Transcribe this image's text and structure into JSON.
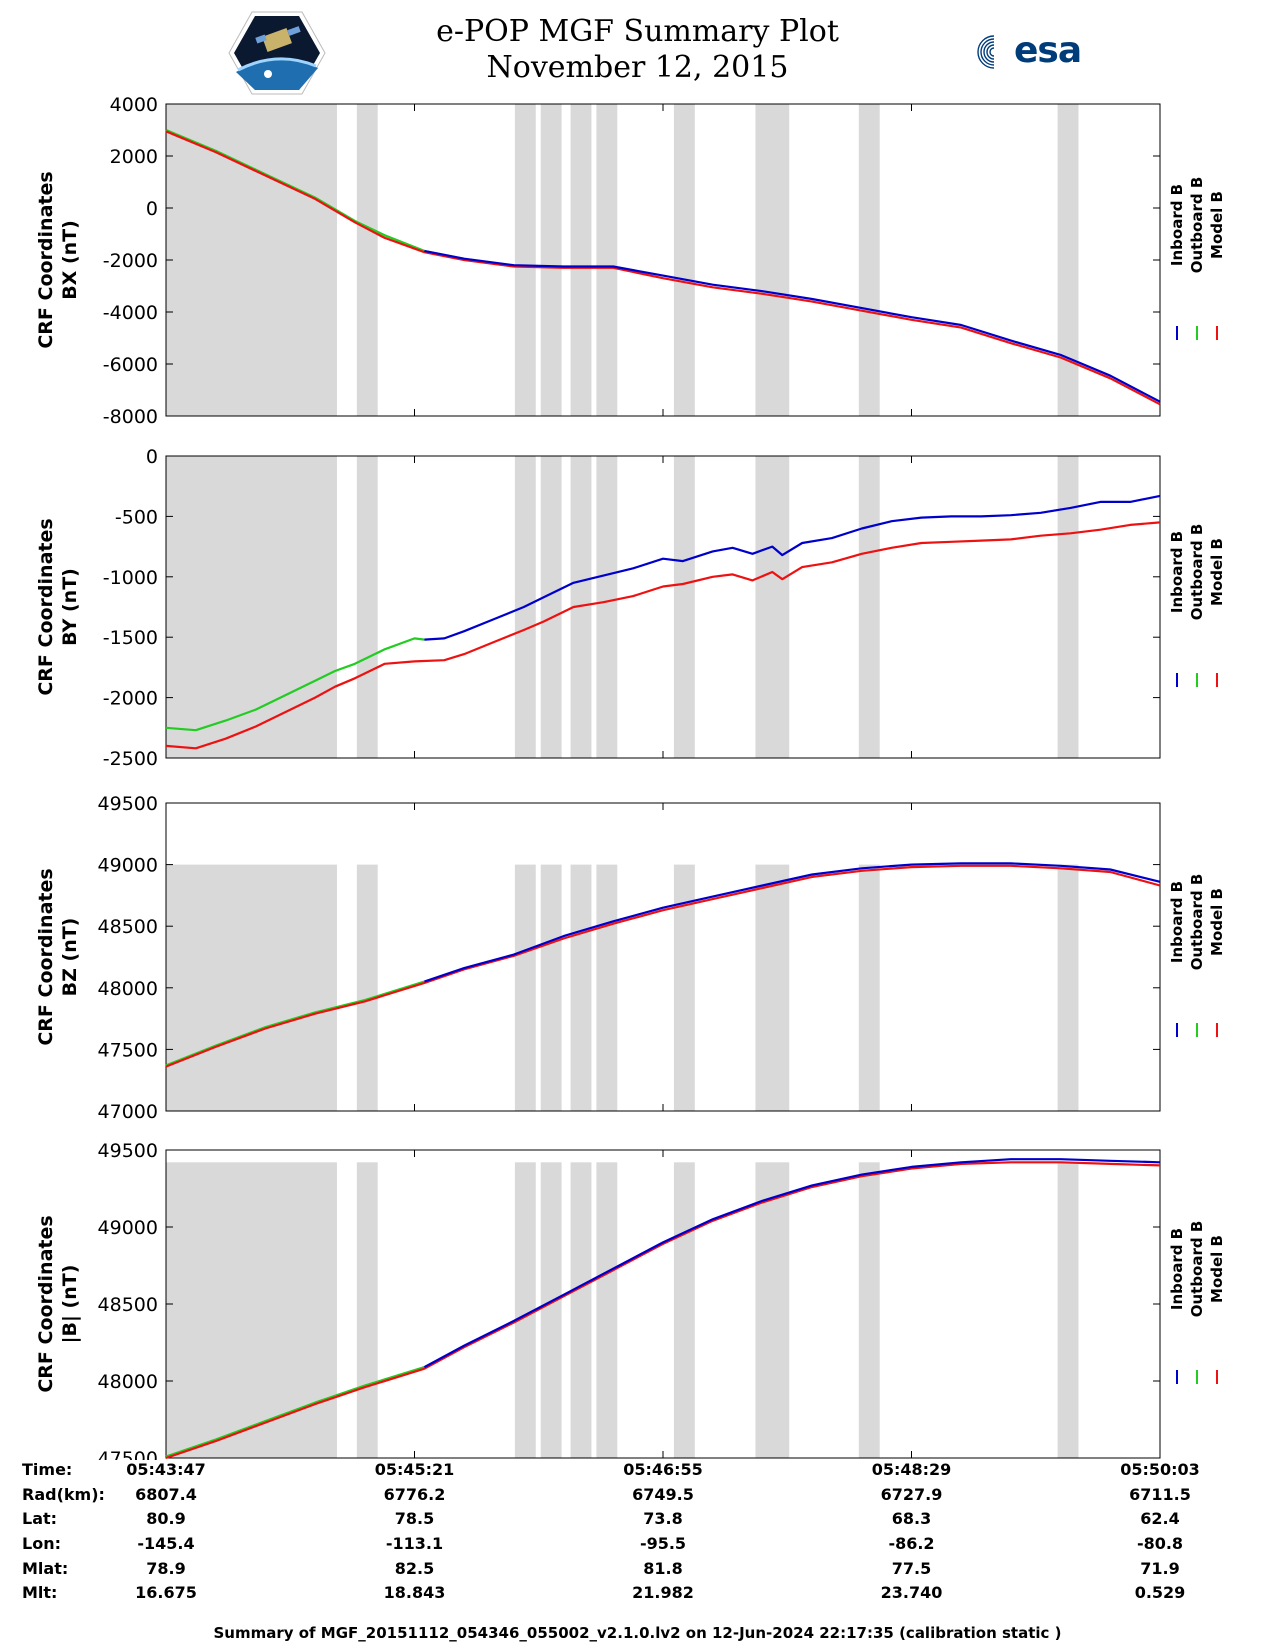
{
  "header": {
    "title": "e-POP MGF Summary Plot",
    "date": "November 12, 2015",
    "logo_left_icon": "cassiope-satellite-logo",
    "logo_right_icon": "esa-logo",
    "esa_text": "esa"
  },
  "legend": {
    "items": [
      {
        "label": "Inboard B",
        "color": "#0000cc"
      },
      {
        "label": "Outboard B",
        "color": "#22cc22"
      },
      {
        "label": "Model B",
        "color": "#ee1111"
      }
    ]
  },
  "shading_color": "#d9d9d9",
  "chart_data": [
    {
      "type": "line",
      "ylabel_line1": "CRF Coordinates",
      "ylabel_line2": "BX (nT)",
      "ylim": [
        -8000,
        4000
      ],
      "yticks": [
        "4000",
        "2000",
        "0",
        "-2000",
        "-4000",
        "-6000",
        "-8000"
      ],
      "ytick_values": [
        4000,
        2000,
        0,
        -2000,
        -4000,
        -6000,
        -8000
      ],
      "shade_top": 4000,
      "series": [
        {
          "name": "Inboard B",
          "x": [
            0.26,
            0.3,
            0.35,
            0.4,
            0.45,
            0.5,
            0.55,
            0.6,
            0.65,
            0.7,
            0.75,
            0.8,
            0.85,
            0.9,
            0.95,
            1.0
          ],
          "y": [
            -1650,
            -1950,
            -2200,
            -2250,
            -2250,
            -2600,
            -2950,
            -3200,
            -3500,
            -3850,
            -4200,
            -4500,
            -5100,
            -5650,
            -6450,
            -7450
          ]
        },
        {
          "name": "Outboard B",
          "x": [
            0.0,
            0.05,
            0.1,
            0.15,
            0.19,
            0.22,
            0.26
          ],
          "y": [
            3000,
            2200,
            1300,
            400,
            -500,
            -1050,
            -1650
          ]
        },
        {
          "name": "Model B",
          "x": [
            0.0,
            0.05,
            0.1,
            0.15,
            0.19,
            0.22,
            0.26,
            0.3,
            0.35,
            0.4,
            0.45,
            0.5,
            0.55,
            0.6,
            0.65,
            0.7,
            0.75,
            0.8,
            0.85,
            0.9,
            0.95,
            1.0
          ],
          "y": [
            2950,
            2150,
            1250,
            350,
            -550,
            -1150,
            -1700,
            -2000,
            -2250,
            -2300,
            -2300,
            -2700,
            -3050,
            -3300,
            -3600,
            -3950,
            -4300,
            -4600,
            -5200,
            -5750,
            -6550,
            -7550
          ]
        }
      ]
    },
    {
      "type": "line",
      "ylabel_line1": "CRF Coordinates",
      "ylabel_line2": "BY (nT)",
      "ylim": [
        -2500,
        0
      ],
      "yticks": [
        "0",
        "-500",
        "-1000",
        "-1500",
        "-2000",
        "-2500"
      ],
      "ytick_values": [
        0,
        -500,
        -1000,
        -1500,
        -2000,
        -2500
      ],
      "shade_top": 0,
      "series": [
        {
          "name": "Inboard B",
          "x": [
            0.26,
            0.28,
            0.3,
            0.33,
            0.36,
            0.38,
            0.41,
            0.44,
            0.47,
            0.5,
            0.52,
            0.55,
            0.57,
            0.59,
            0.61,
            0.62,
            0.64,
            0.67,
            0.7,
            0.73,
            0.76,
            0.79,
            0.82,
            0.85,
            0.88,
            0.91,
            0.94,
            0.97,
            1.0
          ],
          "y": [
            -1520,
            -1510,
            -1450,
            -1350,
            -1250,
            -1170,
            -1050,
            -990,
            -930,
            -850,
            -870,
            -790,
            -760,
            -810,
            -750,
            -820,
            -720,
            -680,
            -600,
            -540,
            -510,
            -500,
            -500,
            -490,
            -470,
            -430,
            -380,
            -380,
            -330
          ]
        },
        {
          "name": "Outboard B",
          "x": [
            0.0,
            0.03,
            0.06,
            0.09,
            0.12,
            0.15,
            0.17,
            0.19,
            0.22,
            0.25,
            0.26
          ],
          "y": [
            -2250,
            -2270,
            -2190,
            -2100,
            -1980,
            -1860,
            -1780,
            -1720,
            -1600,
            -1510,
            -1520
          ]
        },
        {
          "name": "Model B",
          "x": [
            0.0,
            0.03,
            0.06,
            0.09,
            0.12,
            0.15,
            0.17,
            0.19,
            0.22,
            0.25,
            0.28,
            0.3,
            0.33,
            0.36,
            0.38,
            0.41,
            0.44,
            0.47,
            0.5,
            0.52,
            0.55,
            0.57,
            0.59,
            0.61,
            0.62,
            0.64,
            0.67,
            0.7,
            0.73,
            0.76,
            0.79,
            0.82,
            0.85,
            0.88,
            0.91,
            0.94,
            0.97,
            1.0
          ],
          "y": [
            -2400,
            -2420,
            -2340,
            -2240,
            -2120,
            -2000,
            -1910,
            -1840,
            -1720,
            -1700,
            -1690,
            -1640,
            -1540,
            -1440,
            -1370,
            -1250,
            -1210,
            -1160,
            -1080,
            -1060,
            -1000,
            -980,
            -1030,
            -960,
            -1020,
            -920,
            -880,
            -810,
            -760,
            -720,
            -710,
            -700,
            -690,
            -660,
            -640,
            -610,
            -570,
            -550
          ]
        }
      ]
    },
    {
      "type": "line",
      "ylabel_line1": "CRF Coordinates",
      "ylabel_line2": "BZ (nT)",
      "ylim": [
        47000,
        49500
      ],
      "yticks": [
        "49500",
        "49000",
        "48500",
        "48000",
        "47500",
        "47000"
      ],
      "ytick_values": [
        49500,
        49000,
        48500,
        48000,
        47500,
        47000
      ],
      "shade_top": 49000,
      "series": [
        {
          "name": "Inboard B",
          "x": [
            0.26,
            0.3,
            0.35,
            0.4,
            0.45,
            0.5,
            0.55,
            0.6,
            0.65,
            0.7,
            0.75,
            0.8,
            0.85,
            0.9,
            0.95,
            1.0
          ],
          "y": [
            48050,
            48160,
            48270,
            48420,
            48540,
            48650,
            48740,
            48830,
            48920,
            48970,
            49000,
            49010,
            49010,
            48990,
            48960,
            48860
          ]
        },
        {
          "name": "Outboard B",
          "x": [
            0.0,
            0.05,
            0.1,
            0.15,
            0.2,
            0.26
          ],
          "y": [
            47370,
            47530,
            47680,
            47800,
            47900,
            48050
          ]
        },
        {
          "name": "Model B",
          "x": [
            0.0,
            0.05,
            0.1,
            0.15,
            0.2,
            0.26,
            0.3,
            0.35,
            0.4,
            0.45,
            0.5,
            0.55,
            0.6,
            0.65,
            0.7,
            0.75,
            0.8,
            0.85,
            0.9,
            0.95,
            1.0
          ],
          "y": [
            47360,
            47520,
            47670,
            47790,
            47890,
            48040,
            48150,
            48260,
            48400,
            48520,
            48630,
            48720,
            48810,
            48900,
            48950,
            48980,
            48990,
            48990,
            48970,
            48940,
            48830
          ]
        }
      ]
    },
    {
      "type": "line",
      "ylabel_line1": "CRF Coordinates",
      "ylabel_line2": "|B| (nT)",
      "ylim": [
        47500,
        49500
      ],
      "yticks": [
        "49500",
        "49000",
        "48500",
        "48000",
        "47500"
      ],
      "ytick_values": [
        49500,
        49000,
        48500,
        48000,
        47500
      ],
      "shade_top": 49420,
      "series": [
        {
          "name": "Inboard B",
          "x": [
            0.26,
            0.3,
            0.35,
            0.4,
            0.45,
            0.5,
            0.55,
            0.6,
            0.65,
            0.7,
            0.75,
            0.8,
            0.85,
            0.9,
            0.95,
            1.0
          ],
          "y": [
            48090,
            48230,
            48390,
            48560,
            48730,
            48900,
            49050,
            49170,
            49270,
            49340,
            49390,
            49420,
            49440,
            49440,
            49430,
            49420
          ]
        },
        {
          "name": "Outboard B",
          "x": [
            0.0,
            0.05,
            0.1,
            0.15,
            0.2,
            0.26
          ],
          "y": [
            47510,
            47620,
            47740,
            47860,
            47970,
            48090
          ]
        },
        {
          "name": "Model B",
          "x": [
            0.0,
            0.05,
            0.1,
            0.15,
            0.2,
            0.26,
            0.3,
            0.35,
            0.4,
            0.45,
            0.5,
            0.55,
            0.6,
            0.65,
            0.7,
            0.75,
            0.8,
            0.85,
            0.9,
            0.95,
            1.0
          ],
          "y": [
            47500,
            47610,
            47730,
            47850,
            47960,
            48080,
            48220,
            48380,
            48550,
            48720,
            48890,
            49040,
            49160,
            49260,
            49330,
            49380,
            49410,
            49420,
            49420,
            49410,
            49400
          ]
        }
      ]
    }
  ],
  "shaded_intervals": [
    [
      0.0,
      0.172
    ],
    [
      0.192,
      0.213
    ],
    [
      0.351,
      0.372
    ],
    [
      0.377,
      0.398
    ],
    [
      0.407,
      0.428
    ],
    [
      0.433,
      0.454
    ],
    [
      0.511,
      0.532
    ],
    [
      0.593,
      0.627
    ],
    [
      0.697,
      0.718
    ],
    [
      0.897,
      0.918
    ]
  ],
  "info": {
    "labels": [
      "Time:",
      "Rad(km):",
      "Lat:",
      "Lon:",
      "Mlat:",
      "Mlt:"
    ],
    "columns": [
      [
        "05:43:47",
        "6807.4",
        "80.9",
        "-145.4",
        "78.9",
        "16.675"
      ],
      [
        "05:45:21",
        "6776.2",
        "78.5",
        "-113.1",
        "82.5",
        "18.843"
      ],
      [
        "05:46:55",
        "6749.5",
        "73.8",
        "-95.5",
        "81.8",
        "21.982"
      ],
      [
        "05:48:29",
        "6727.9",
        "68.3",
        "-86.2",
        "77.5",
        "23.740"
      ],
      [
        "05:50:03",
        "6711.5",
        "62.4",
        "-80.8",
        "71.9",
        "0.529"
      ]
    ]
  },
  "footer": "Summary of MGF_20151112_054346_055002_v2.1.0.lv2 on 12-Jun-2024 22:17:35 (calibration static )"
}
